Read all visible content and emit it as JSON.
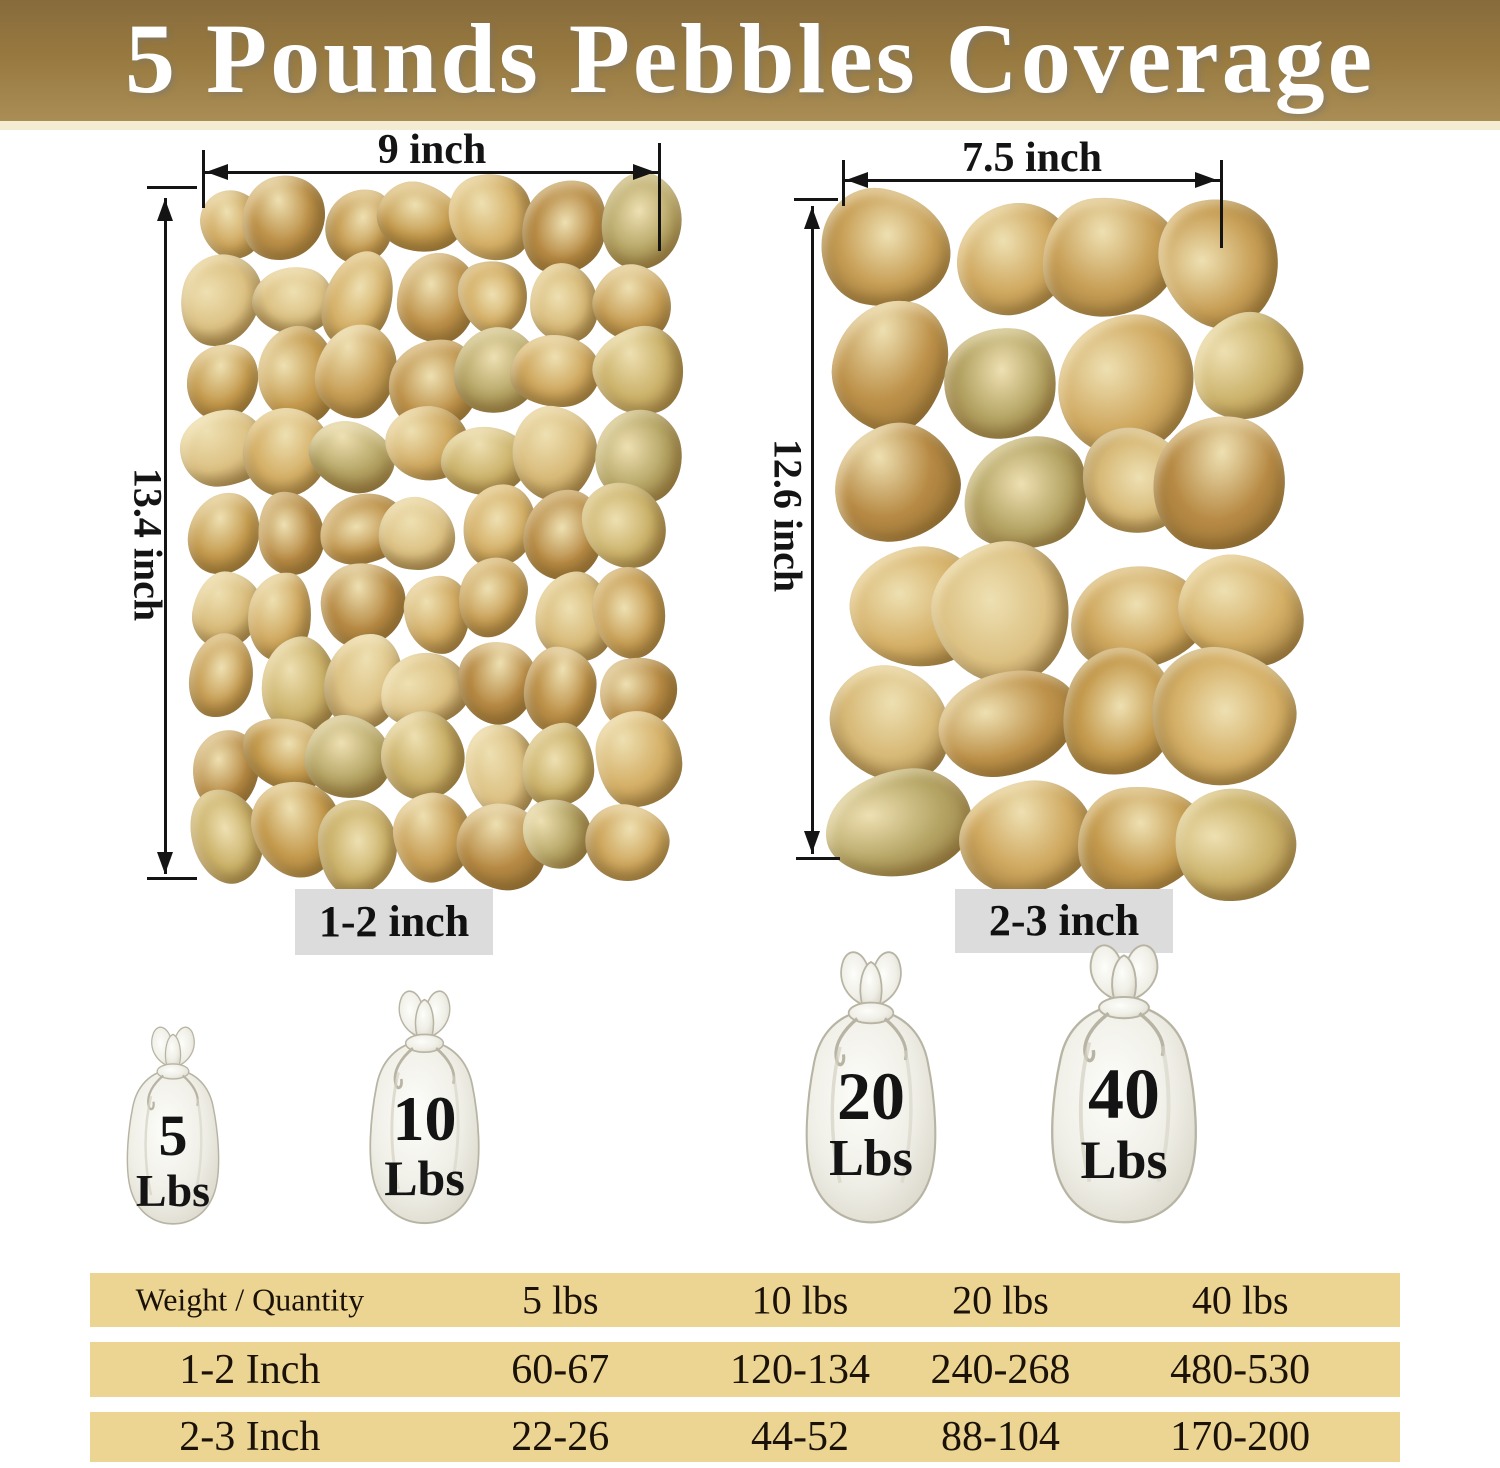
{
  "header": {
    "title": "5 Pounds Pebbles Coverage",
    "banner_color_top": "#876b3c",
    "banner_color_bottom": "#a98d55",
    "text_color": "#ffffff"
  },
  "photos": {
    "left": {
      "width_label": "9 inch",
      "height_label": "13.4 inch",
      "size_label": "1-2 inch"
    },
    "right": {
      "width_label": "7.5 inch",
      "height_label": "12.6 inch",
      "size_label": "2-3 inch"
    }
  },
  "bags": [
    {
      "weight": "5",
      "unit": "Lbs"
    },
    {
      "weight": "10",
      "unit": "Lbs"
    },
    {
      "weight": "20",
      "unit": "Lbs"
    },
    {
      "weight": "40",
      "unit": "Lbs"
    }
  ],
  "table": {
    "row_color": "#ecd592",
    "header": [
      "Weight / Quantity",
      "5 lbs",
      "10 lbs",
      "20 lbs",
      "40 lbs"
    ],
    "rows": [
      {
        "label": "1-2 Inch",
        "values": [
          "60-67",
          "120-134",
          "240-268",
          "480-530"
        ]
      },
      {
        "label": "2-3 Inch",
        "values": [
          "22-26",
          "44-52",
          "88-104",
          "170-200"
        ]
      }
    ]
  },
  "decor": {
    "size_tag_bg": "#dcdcdc",
    "pebble_palette": [
      "#c79e55",
      "#d4af66",
      "#bd9149",
      "#d7b977",
      "#c49a4d",
      "#cfa85f",
      "#b78a44",
      "#dcc183",
      "#b5a565",
      "#cbb26a"
    ],
    "pebble_highlight": "#eee0b2",
    "pebble_shadow": "#8a6a33",
    "clusters": [
      {
        "target": "pebbles-left",
        "cols": 7,
        "rows": 9,
        "seed": 7,
        "min_scale": 0.82,
        "max_scale": 1.2
      },
      {
        "target": "pebbles-right",
        "cols": 4,
        "rows": 6,
        "seed": 13,
        "min_scale": 0.84,
        "max_scale": 1.18
      }
    ],
    "bag_fill_light": "#fdfdfa",
    "bag_fill_mid": "#efeee6",
    "bag_fill_dark": "#d4d1c2",
    "bag_line": "#b7b4a3"
  }
}
